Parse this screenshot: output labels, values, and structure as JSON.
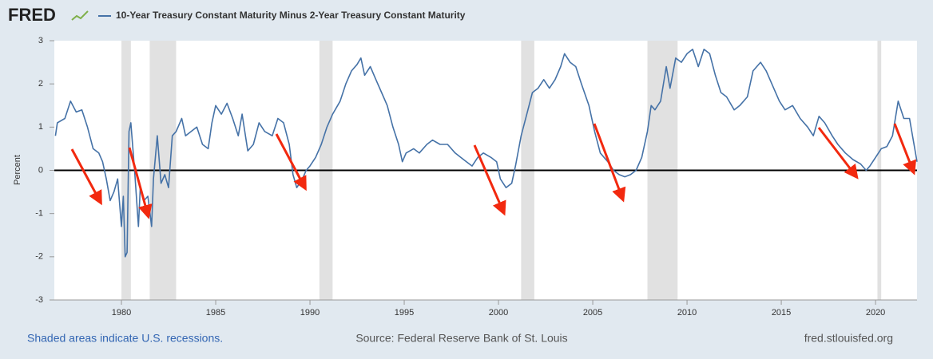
{
  "chart_data": {
    "type": "line",
    "brand": "FRED",
    "ylabel": "Percent",
    "footer_left": "Shaded areas indicate U.S. recessions.",
    "footer_center": "Source: Federal Reserve Bank of St. Louis",
    "footer_right": "fred.stlouisfed.org",
    "xlim": [
      1976.44,
      2022.2
    ],
    "ylim": [
      -3,
      3
    ],
    "xticks": [
      1980,
      1985,
      1990,
      1995,
      2000,
      2005,
      2010,
      2015,
      2020
    ],
    "yticks": [
      -3,
      -2,
      -1,
      0,
      1,
      2,
      3
    ],
    "recessions": [
      [
        1980.0,
        1980.5
      ],
      [
        1981.5,
        1982.9
      ],
      [
        1990.5,
        1991.2
      ],
      [
        2001.2,
        2001.9
      ],
      [
        2007.9,
        2009.5
      ],
      [
        2020.1,
        2020.3
      ]
    ],
    "recession_color": "#e1e1e1",
    "x": [
      1976.5,
      1976.6,
      1977.0,
      1977.3,
      1977.6,
      1977.9,
      1978.2,
      1978.5,
      1978.8,
      1979.0,
      1979.2,
      1979.4,
      1979.6,
      1979.8,
      1980.0,
      1980.1,
      1980.2,
      1980.3,
      1980.4,
      1980.5,
      1980.7,
      1980.9,
      1981.0,
      1981.2,
      1981.4,
      1981.6,
      1981.7,
      1981.9,
      1982.1,
      1982.3,
      1982.5,
      1982.7,
      1982.9,
      1983.2,
      1983.4,
      1983.7,
      1984.0,
      1984.3,
      1984.6,
      1984.8,
      1985.0,
      1985.3,
      1985.6,
      1985.9,
      1986.2,
      1986.4,
      1986.7,
      1987.0,
      1987.3,
      1987.6,
      1988.0,
      1988.3,
      1988.6,
      1988.9,
      1989.1,
      1989.3,
      1989.6,
      1989.8,
      1990.0,
      1990.3,
      1990.6,
      1990.9,
      1991.2,
      1991.6,
      1991.9,
      1992.2,
      1992.5,
      1992.7,
      1992.9,
      1993.2,
      1993.5,
      1993.8,
      1994.1,
      1994.4,
      1994.7,
      1994.9,
      1995.1,
      1995.5,
      1995.8,
      1996.2,
      1996.5,
      1996.9,
      1997.3,
      1997.7,
      1998.0,
      1998.3,
      1998.6,
      1998.9,
      1999.2,
      1999.6,
      1999.9,
      2000.1,
      2000.4,
      2000.7,
      2000.9,
      2001.2,
      2001.5,
      2001.8,
      2002.1,
      2002.4,
      2002.7,
      2003.0,
      2003.3,
      2003.5,
      2003.8,
      2004.1,
      2004.4,
      2004.8,
      2005.1,
      2005.4,
      2005.8,
      2006.1,
      2006.4,
      2006.7,
      2007.0,
      2007.3,
      2007.6,
      2007.9,
      2008.1,
      2008.3,
      2008.6,
      2008.9,
      2009.1,
      2009.4,
      2009.7,
      2010.0,
      2010.3,
      2010.6,
      2010.9,
      2011.2,
      2011.5,
      2011.8,
      2012.1,
      2012.5,
      2012.8,
      2013.2,
      2013.5,
      2013.9,
      2014.2,
      2014.6,
      2014.9,
      2015.2,
      2015.6,
      2016.0,
      2016.4,
      2016.7,
      2017.0,
      2017.3,
      2017.7,
      2018.0,
      2018.4,
      2018.8,
      2019.2,
      2019.5,
      2019.7,
      2020.0,
      2020.3,
      2020.6,
      2020.9,
      2021.2,
      2021.5,
      2021.8,
      2022.0,
      2022.2
    ],
    "series": [
      {
        "name": "10-Year Treasury Constant Maturity Minus 2-Year Treasury Constant Maturity",
        "color": "#4572a7",
        "values": [
          0.8,
          1.1,
          1.2,
          1.6,
          1.35,
          1.4,
          1.0,
          0.5,
          0.4,
          0.2,
          -0.2,
          -0.7,
          -0.5,
          -0.2,
          -1.3,
          -0.6,
          -2.0,
          -1.9,
          0.9,
          1.1,
          0.0,
          -1.3,
          -0.4,
          -0.7,
          -0.6,
          -1.3,
          -0.2,
          0.8,
          -0.3,
          -0.1,
          -0.4,
          0.8,
          0.9,
          1.2,
          0.8,
          0.9,
          1.0,
          0.6,
          0.5,
          1.1,
          1.5,
          1.3,
          1.55,
          1.2,
          0.8,
          1.3,
          0.45,
          0.6,
          1.1,
          0.9,
          0.8,
          1.2,
          1.1,
          0.6,
          -0.1,
          -0.4,
          -0.2,
          0.0,
          0.1,
          0.3,
          0.6,
          1.0,
          1.3,
          1.6,
          2.0,
          2.3,
          2.45,
          2.6,
          2.2,
          2.4,
          2.1,
          1.8,
          1.5,
          1.0,
          0.6,
          0.2,
          0.4,
          0.5,
          0.4,
          0.6,
          0.7,
          0.6,
          0.6,
          0.4,
          0.3,
          0.2,
          0.1,
          0.3,
          0.4,
          0.3,
          0.2,
          -0.2,
          -0.4,
          -0.3,
          0.1,
          0.8,
          1.3,
          1.8,
          1.9,
          2.1,
          1.9,
          2.1,
          2.4,
          2.7,
          2.5,
          2.4,
          2.0,
          1.5,
          0.9,
          0.4,
          0.2,
          0.0,
          -0.1,
          -0.15,
          -0.1,
          0.0,
          0.3,
          0.9,
          1.5,
          1.4,
          1.6,
          2.4,
          1.9,
          2.6,
          2.5,
          2.7,
          2.8,
          2.4,
          2.8,
          2.7,
          2.2,
          1.8,
          1.7,
          1.4,
          1.5,
          1.7,
          2.3,
          2.5,
          2.3,
          1.9,
          1.6,
          1.4,
          1.5,
          1.2,
          1.0,
          0.8,
          1.25,
          1.1,
          0.8,
          0.6,
          0.4,
          0.25,
          0.15,
          0.0,
          0.1,
          0.3,
          0.5,
          0.55,
          0.8,
          1.6,
          1.2,
          1.2,
          0.7,
          0.2
        ]
      }
    ]
  }
}
